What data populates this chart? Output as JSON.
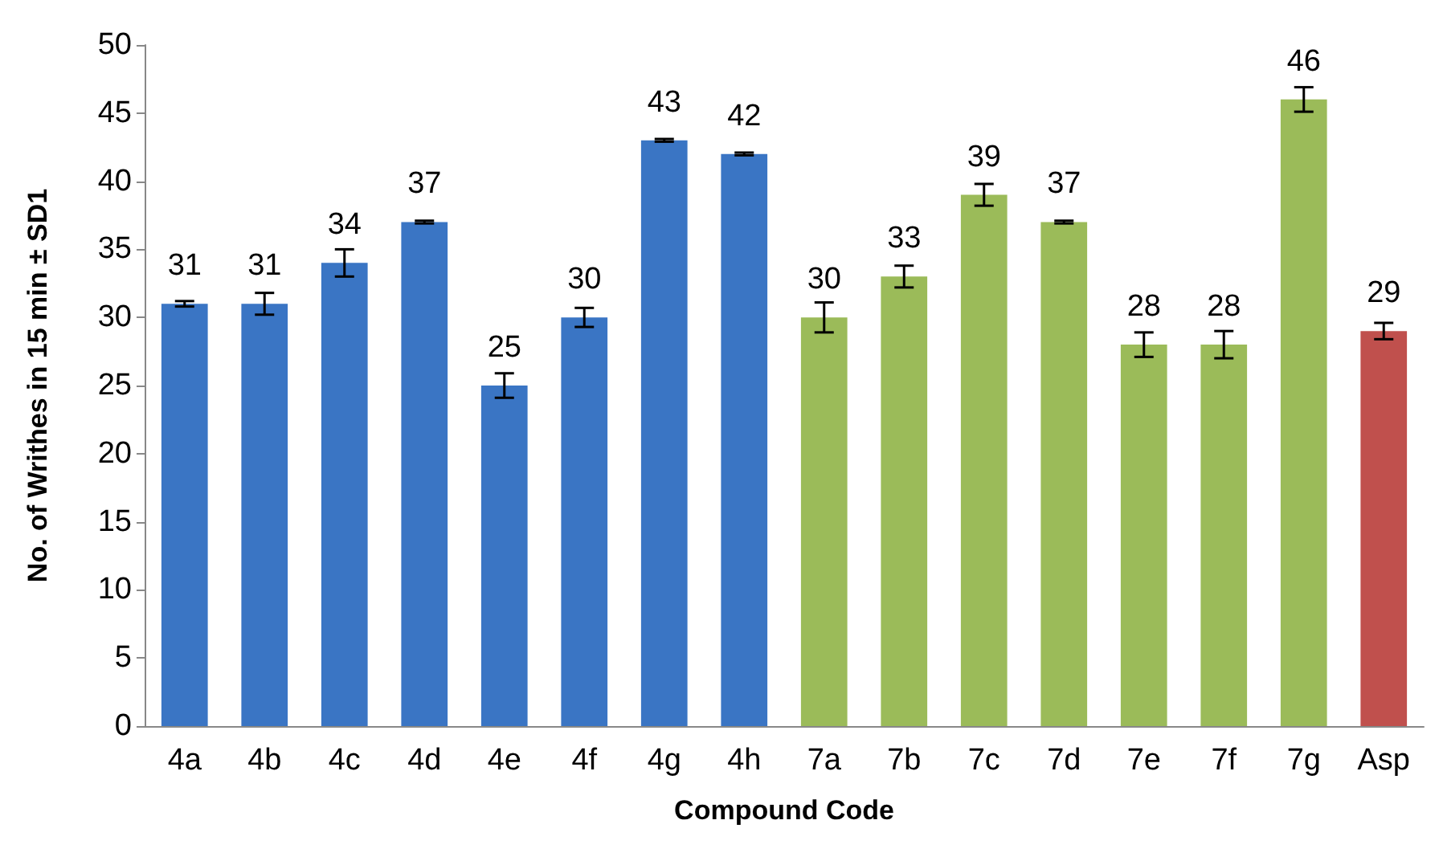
{
  "chart_data": {
    "type": "bar",
    "xlabel": "Compound Code",
    "ylabel": "No. of Writhes in 15 min ± SD1",
    "categories": [
      "4a",
      "4b",
      "4c",
      "4d",
      "4e",
      "4f",
      "4g",
      "4h",
      "7a",
      "7b",
      "7c",
      "7d",
      "7e",
      "7f",
      "7g",
      "Asp"
    ],
    "values": [
      31,
      31,
      34,
      37,
      25,
      30,
      43,
      42,
      30,
      33,
      39,
      37,
      28,
      28,
      46,
      29
    ],
    "errors": [
      0.2,
      0.8,
      1,
      0.1,
      0.9,
      0.7,
      0.1,
      0.1,
      1.1,
      0.8,
      0.8,
      0.1,
      0.9,
      1,
      0.9,
      0.6
    ],
    "colors": [
      "#3a75c4",
      "#3a75c4",
      "#3a75c4",
      "#3a75c4",
      "#3a75c4",
      "#3a75c4",
      "#3a75c4",
      "#3a75c4",
      "#9bbb59",
      "#9bbb59",
      "#9bbb59",
      "#9bbb59",
      "#9bbb59",
      "#9bbb59",
      "#9bbb59",
      "#c0504d"
    ],
    "data_labels": true,
    "ylim": [
      0,
      50
    ],
    "yticks": [
      0,
      5,
      10,
      15,
      20,
      25,
      30,
      35,
      40,
      45,
      50
    ],
    "grid": false
  }
}
